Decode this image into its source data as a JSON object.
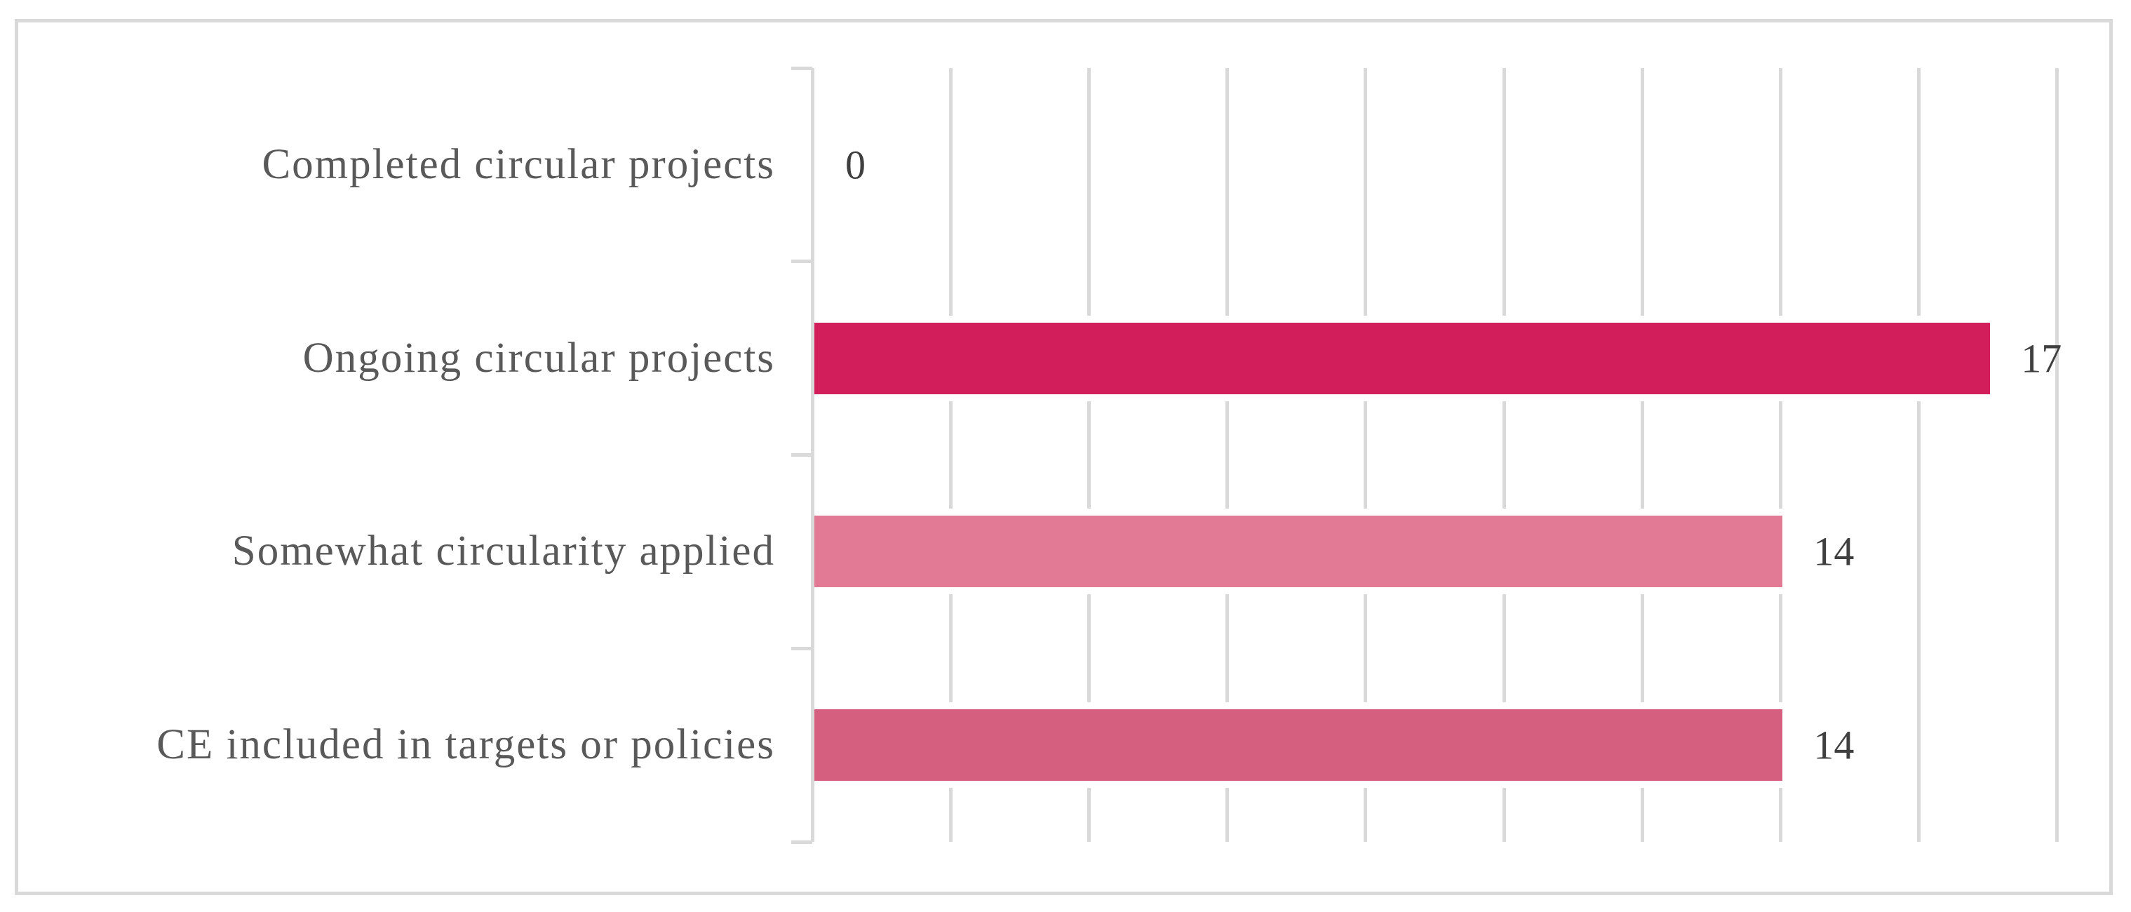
{
  "chart_data": {
    "type": "bar",
    "orientation": "horizontal",
    "title": "",
    "xlabel": "",
    "ylabel": "",
    "legend": "none",
    "grid": true,
    "categories": [
      "Completed circular projects",
      "Ongoing circular projects",
      "Somewhat circularity applied",
      "CE included in targets or policies"
    ],
    "values": [
      0,
      17,
      14,
      14
    ],
    "data_labels": [
      "0",
      "17",
      "14",
      "14"
    ],
    "bar_colors": [
      "#D21F5B",
      "#D21F5B",
      "#E27A95",
      "#D45F7E"
    ],
    "xlim": [
      0,
      18
    ],
    "gridline_step": 2,
    "axis_tick_labels_visible": false,
    "colors": {
      "background": "#FFFFFF",
      "frame_border": "#D9D9D9",
      "gridline": "#D9D9D9",
      "axis_line": "#D9D9D9",
      "category_label_text": "#595959",
      "value_label_text": "#3F3F3F"
    }
  }
}
